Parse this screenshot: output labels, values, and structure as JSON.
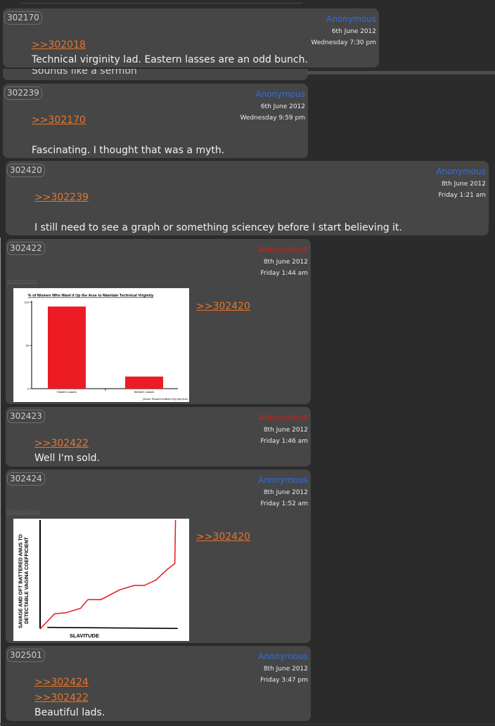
{
  "posts": [
    {
      "id": "302170",
      "name": "Anonymous",
      "date": "6th June 2012",
      "time": "Wednesday 7:30 pm",
      "refs": [
        ">>302018"
      ],
      "text": "Technical virginity lad. Eastern lasses are an odd bunch."
    },
    {
      "id": "302239",
      "name": "Anonymous",
      "date": "6th June 2012",
      "time": "Wednesday 9:59 pm",
      "refs": [
        ">>302170"
      ],
      "text": "Fascinating. I thought that was a myth."
    },
    {
      "id": "302420",
      "name": "Anonymous",
      "date": "8th June 2012",
      "time": "Friday 1:21 am",
      "refs": [
        ">>302239"
      ],
      "text": "I still need to see a graph or something sciencey before I start believing it."
    },
    {
      "id": "302422",
      "name": "Anonymous",
      "date": "8th June 2012",
      "time": "Friday 1:44 am",
      "refs": [
        ">>302420"
      ],
      "text": "",
      "filename": "science.png"
    },
    {
      "id": "302423",
      "name": "Anonymous",
      "date": "8th June 2012",
      "time": "Friday 1:46 am",
      "refs": [
        ">>302422"
      ],
      "text": "Well I'm sold."
    },
    {
      "id": "302424",
      "name": "Anonymous",
      "date": "8th June 2012",
      "time": "Friday 1:52 am",
      "refs": [
        ">>302420"
      ],
      "text": "",
      "filename": "battered.png"
    },
    {
      "id": "302501",
      "name": "Anonymous",
      "date": "8th June 2012",
      "time": "Friday 3:47 pm",
      "refs": [
        ">>302424",
        ">>302422"
      ],
      "text": "Beautiful lads."
    }
  ],
  "partial_text": "Sounds like a sermon",
  "colors": {
    "name_blue": "#2f6fe0",
    "name_red": "#d21d1d",
    "link": "#e8752a"
  },
  "chart_data": [
    {
      "type": "bar",
      "title": "% of Women Who Want it Up the Arse to Maintain Technical Virginity",
      "categories": [
        "Eastern Lasses",
        "Western Lasses"
      ],
      "values": [
        95,
        14
      ],
      "ylim": [
        0,
        100
      ],
      "yticks": [
        "100",
        "50",
        "0"
      ],
      "source": "(Source: Research Institute of My Hairy Arse)"
    },
    {
      "type": "line",
      "xlabel": "SLAVITUDE",
      "ylabel": "SAVAGE AND OFT BATTERED ANUS TO DETECTABLE VAGINA COEFFICIENT",
      "series": [
        {
          "values": [
            [
              0,
              0
            ],
            [
              10,
              14
            ],
            [
              18,
              15
            ],
            [
              28,
              19
            ],
            [
              33,
              27
            ],
            [
              42,
              27
            ],
            [
              55,
              36
            ],
            [
              65,
              40
            ],
            [
              72,
              40
            ],
            [
              80,
              45
            ],
            [
              88,
              55
            ],
            [
              93,
              60
            ],
            [
              93.5,
              100
            ]
          ]
        }
      ],
      "baseline": [
        [
          5,
          1.5
        ],
        [
          95,
          0.5
        ]
      ]
    }
  ]
}
